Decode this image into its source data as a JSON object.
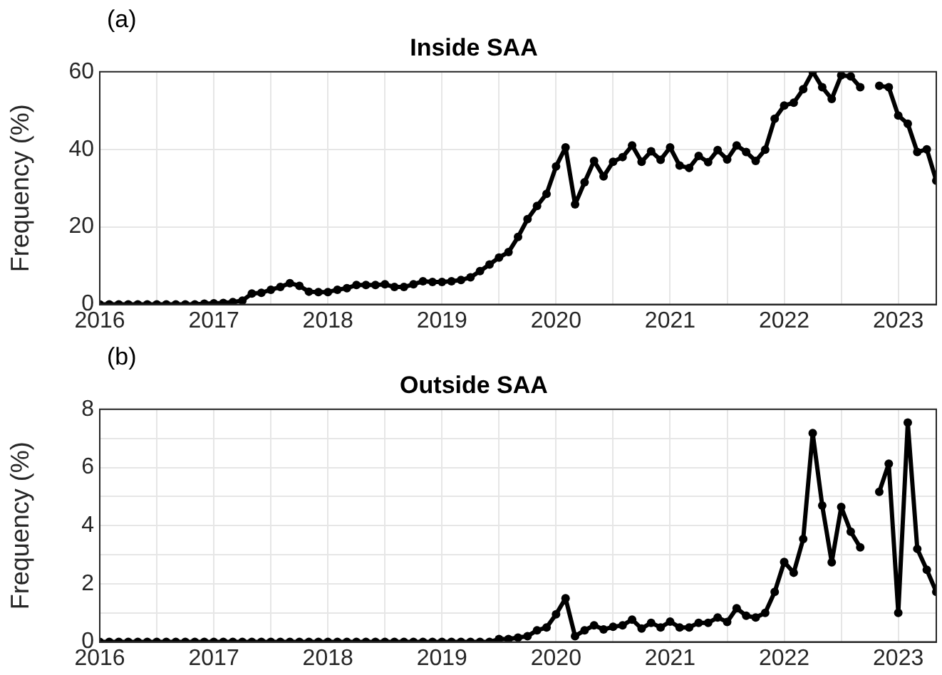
{
  "chart_data": [
    {
      "type": "line",
      "title": "Inside SAA",
      "ylabel": "Frequency (%)",
      "annotations": [
        "(a)"
      ],
      "marker": "circle",
      "line_style": "solid",
      "grid": true,
      "legend": false,
      "x": [
        "2016-01",
        "2016-02",
        "2016-03",
        "2016-04",
        "2016-05",
        "2016-06",
        "2016-07",
        "2016-08",
        "2016-09",
        "2016-10",
        "2016-11",
        "2016-12",
        "2017-01",
        "2017-02",
        "2017-03",
        "2017-04",
        "2017-05",
        "2017-06",
        "2017-07",
        "2017-08",
        "2017-09",
        "2017-10",
        "2017-11",
        "2017-12",
        "2018-01",
        "2018-02",
        "2018-03",
        "2018-04",
        "2018-05",
        "2018-06",
        "2018-07",
        "2018-08",
        "2018-09",
        "2018-10",
        "2018-11",
        "2018-12",
        "2019-01",
        "2019-02",
        "2019-03",
        "2019-04",
        "2019-05",
        "2019-06",
        "2019-07",
        "2019-08",
        "2019-09",
        "2019-10",
        "2019-11",
        "2019-12",
        "2020-01",
        "2020-02",
        "2020-03",
        "2020-04",
        "2020-05",
        "2020-06",
        "2020-07",
        "2020-08",
        "2020-09",
        "2020-10",
        "2020-11",
        "2020-12",
        "2021-01",
        "2021-02",
        "2021-03",
        "2021-04",
        "2021-05",
        "2021-06",
        "2021-07",
        "2021-08",
        "2021-09",
        "2021-10",
        "2021-11",
        "2021-12",
        "2022-01",
        "2022-02",
        "2022-03",
        "2022-04",
        "2022-05",
        "2022-06",
        "2022-07",
        "2022-08",
        "2022-09",
        "2022-10",
        "2022-11",
        "2022-12",
        "2023-01",
        "2023-02",
        "2023-03",
        "2023-04",
        "2023-05"
      ],
      "series": [
        {
          "color": "#000000",
          "values": [
            0,
            0,
            0,
            0,
            0,
            0,
            0,
            0,
            0,
            0,
            0,
            0.2,
            0.3,
            0.4,
            0.6,
            1,
            2.8,
            3,
            3.8,
            4.5,
            5.5,
            4.8,
            3.3,
            3.2,
            3.2,
            3.8,
            4.2,
            5,
            5,
            5,
            5.2,
            4.5,
            4.5,
            5.2,
            6,
            5.8,
            5.8,
            6,
            6.3,
            7,
            8.6,
            10.3,
            12.1,
            13.5,
            17.4,
            22,
            25.4,
            28.5,
            35.6,
            40.5,
            25.8,
            31.5,
            37,
            33,
            36.8,
            38,
            41,
            36.8,
            39.5,
            37.3,
            40.5,
            35.8,
            35.2,
            38.3,
            36.7,
            39.8,
            37.4,
            41,
            39.3,
            37,
            39.9,
            47.9,
            51.3,
            52,
            55.5,
            60,
            56,
            53,
            59.1,
            58.8,
            56,
            null,
            56.4,
            56,
            48.7,
            46.6,
            39.3,
            40,
            31.9
          ]
        }
      ],
      "xlim": [
        "2016-01",
        "2023-05"
      ],
      "xticks": [
        "2016",
        {
          "value": "2016-07",
          "label": null
        },
        "2017",
        {
          "value": "2017-07",
          "label": null
        },
        "2018",
        {
          "value": "2018-07",
          "label": null
        },
        "2019",
        {
          "value": "2019-07",
          "label": null
        },
        "2020",
        {
          "value": "2020-07",
          "label": null
        },
        "2021",
        {
          "value": "2021-07",
          "label": null
        },
        "2022",
        {
          "value": "2022-07",
          "label": null
        },
        "2023"
      ],
      "ylim": [
        0,
        60
      ],
      "yticks": [
        0,
        20,
        40,
        60
      ]
    },
    {
      "type": "line",
      "title": "Outside SAA",
      "ylabel": "Frequency (%)",
      "annotations": [
        "(b)"
      ],
      "marker": "circle",
      "line_style": "solid",
      "grid": true,
      "legend": false,
      "x": [
        "2016-01",
        "2016-02",
        "2016-03",
        "2016-04",
        "2016-05",
        "2016-06",
        "2016-07",
        "2016-08",
        "2016-09",
        "2016-10",
        "2016-11",
        "2016-12",
        "2017-01",
        "2017-02",
        "2017-03",
        "2017-04",
        "2017-05",
        "2017-06",
        "2017-07",
        "2017-08",
        "2017-09",
        "2017-10",
        "2017-11",
        "2017-12",
        "2018-01",
        "2018-02",
        "2018-03",
        "2018-04",
        "2018-05",
        "2018-06",
        "2018-07",
        "2018-08",
        "2018-09",
        "2018-10",
        "2018-11",
        "2018-12",
        "2019-01",
        "2019-02",
        "2019-03",
        "2019-04",
        "2019-05",
        "2019-06",
        "2019-07",
        "2019-08",
        "2019-09",
        "2019-10",
        "2019-11",
        "2019-12",
        "2020-01",
        "2020-02",
        "2020-03",
        "2020-04",
        "2020-05",
        "2020-06",
        "2020-07",
        "2020-08",
        "2020-09",
        "2020-10",
        "2020-11",
        "2020-12",
        "2021-01",
        "2021-02",
        "2021-03",
        "2021-04",
        "2021-05",
        "2021-06",
        "2021-07",
        "2021-08",
        "2021-09",
        "2021-10",
        "2021-11",
        "2021-12",
        "2022-01",
        "2022-02",
        "2022-03",
        "2022-04",
        "2022-05",
        "2022-06",
        "2022-07",
        "2022-08",
        "2022-09",
        "2022-10",
        "2022-11",
        "2022-12",
        "2023-01",
        "2023-02",
        "2023-03",
        "2023-04",
        "2023-05"
      ],
      "series": [
        {
          "color": "#000000",
          "values": [
            0,
            0,
            0,
            0,
            0,
            0,
            0,
            0,
            0,
            0,
            0,
            0,
            0,
            0,
            0,
            0,
            0,
            0,
            0,
            0,
            0,
            0,
            0,
            0,
            0,
            0,
            0,
            0,
            0,
            0,
            0,
            0,
            0,
            0,
            0,
            0,
            0,
            0,
            0,
            0,
            0,
            0,
            0.1,
            0.1,
            0.15,
            0.2,
            0.4,
            0.5,
            0.95,
            1.5,
            0.2,
            0.4,
            0.57,
            0.43,
            0.52,
            0.57,
            0.77,
            0.46,
            0.66,
            0.5,
            0.7,
            0.5,
            0.5,
            0.66,
            0.66,
            0.84,
            0.69,
            1.16,
            0.9,
            0.84,
            1,
            1.72,
            2.75,
            2.38,
            3.54,
            7.18,
            4.69,
            2.74,
            4.64,
            3.79,
            3.25,
            null,
            5.16,
            6.13,
            1,
            7.54,
            3.2,
            2.48,
            1.72
          ]
        }
      ],
      "xlim": [
        "2016-01",
        "2023-05"
      ],
      "xticks": [
        "2016",
        {
          "value": "2016-07",
          "label": null
        },
        "2017",
        {
          "value": "2017-07",
          "label": null
        },
        "2018",
        {
          "value": "2018-07",
          "label": null
        },
        "2019",
        {
          "value": "2019-07",
          "label": null
        },
        "2020",
        {
          "value": "2020-07",
          "label": null
        },
        "2021",
        {
          "value": "2021-07",
          "label": null
        },
        "2022",
        {
          "value": "2022-07",
          "label": null
        },
        "2023"
      ],
      "ylim": [
        0,
        8
      ],
      "yticks": [
        0,
        {
          "value": 1,
          "label": null
        },
        2,
        {
          "value": 3,
          "label": null
        },
        4,
        {
          "value": 5,
          "label": null
        },
        6,
        {
          "value": 7,
          "label": null
        },
        8
      ]
    }
  ]
}
